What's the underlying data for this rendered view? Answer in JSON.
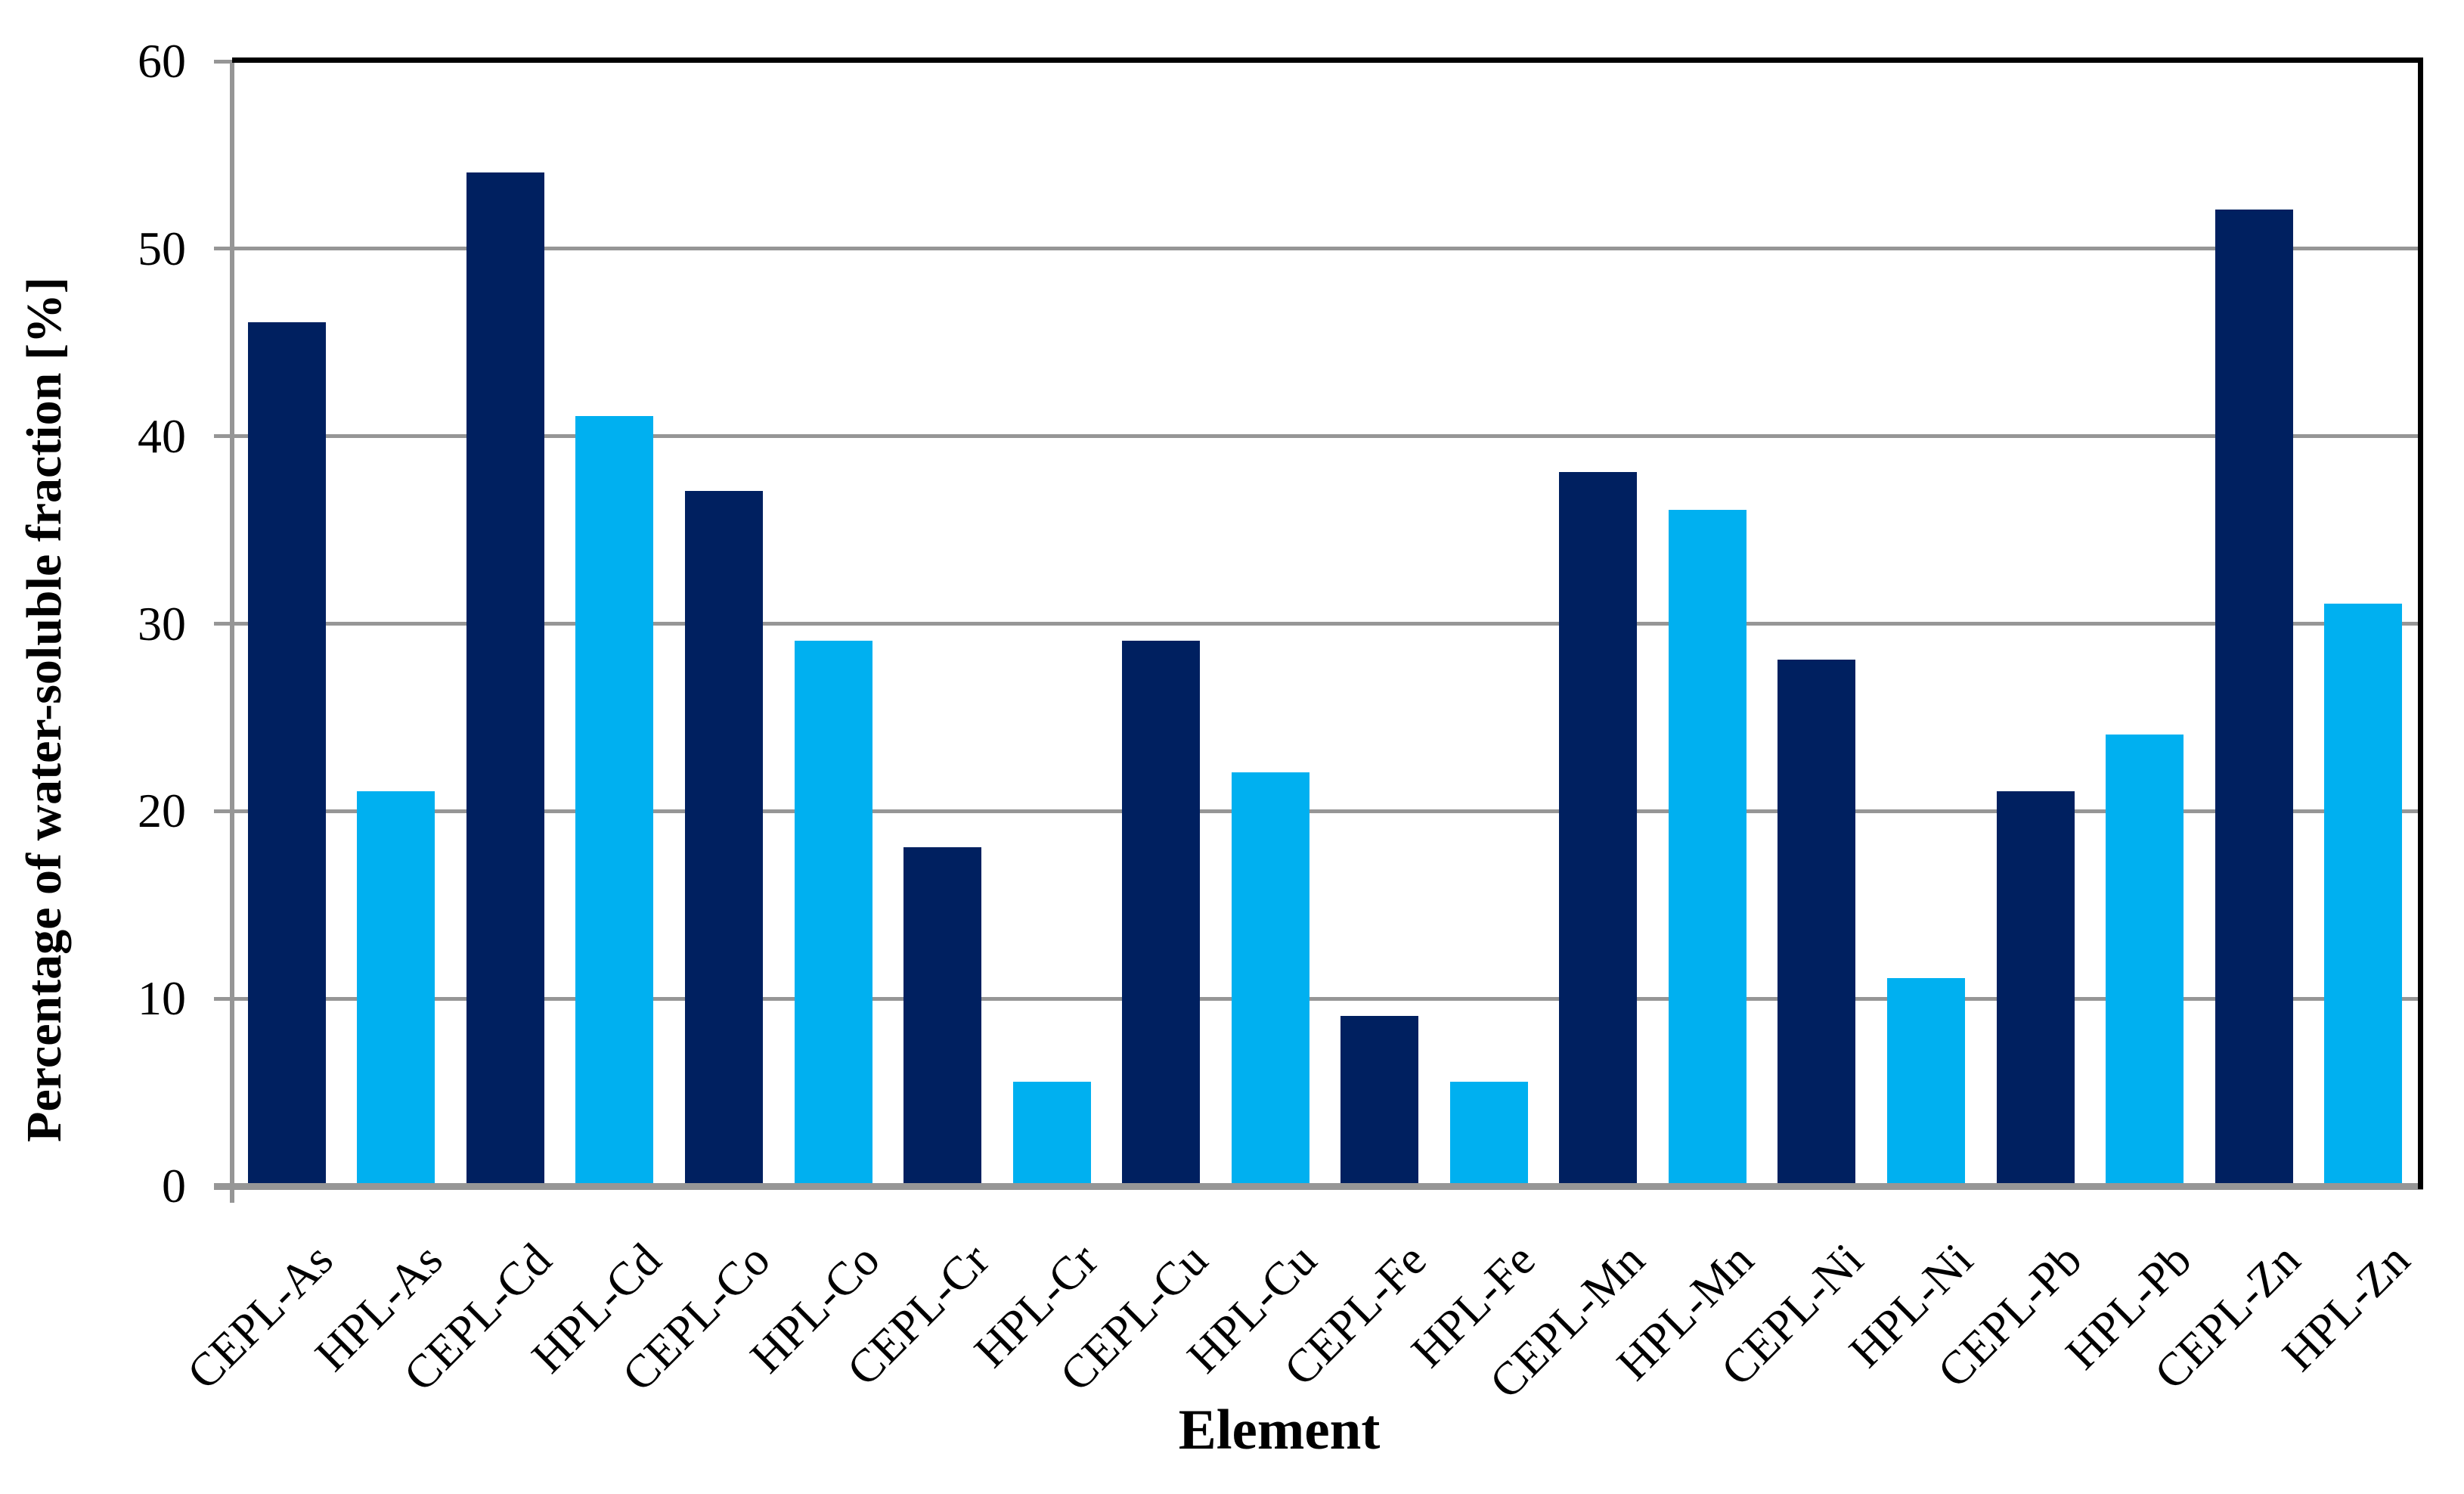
{
  "chart_data": {
    "type": "bar",
    "title": "",
    "xlabel": "Element",
    "ylabel": "Percentage of water-soluble fraction [%]",
    "ylim": [
      0,
      60
    ],
    "yticks": [
      0,
      10,
      20,
      30,
      40,
      50,
      60
    ],
    "grid": true,
    "legend": false,
    "categories": [
      "CEPL-As",
      "HPL-As",
      "CEPL-Cd",
      "HPL-Cd",
      "CEPL-Co",
      "HPL-Co",
      "CEPL-Cr",
      "HPL-Cr",
      "CEPL-Cu",
      "HPL-Cu",
      "CEPL-Fe",
      "HPL-Fe",
      "CEPL-Mn",
      "HPL-Mn",
      "CEPL-Ni",
      "HPL-Ni",
      "CEPL-Pb",
      "HPL-Pb",
      "CEPL-Zn",
      "HPL-Zn"
    ],
    "values": [
      46,
      21,
      54,
      41,
      37,
      29,
      18,
      5.5,
      29,
      22,
      9,
      5.5,
      38,
      36,
      28,
      11,
      21,
      24,
      52,
      31
    ],
    "group_colors": {
      "CEPL": "#002060",
      "HPL": "#00B0F0"
    },
    "axis_colors": {
      "gridline": "#969696",
      "axis": "#969696",
      "plot_border": "#000000",
      "text": "#000000"
    }
  }
}
